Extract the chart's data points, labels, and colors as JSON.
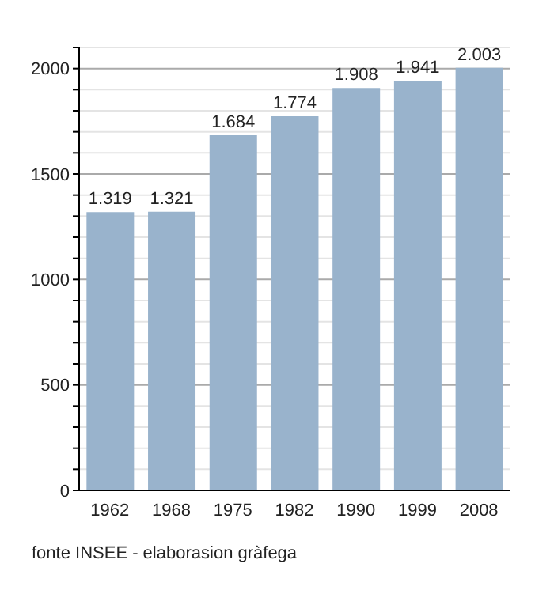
{
  "chart_data": {
    "type": "bar",
    "categories": [
      "1962",
      "1968",
      "1975",
      "1982",
      "1990",
      "1999",
      "2008"
    ],
    "values": [
      1319,
      1321,
      1684,
      1774,
      1908,
      1941,
      2003
    ],
    "value_labels": [
      "1.319",
      "1.321",
      "1.684",
      "1.774",
      "1.908",
      "1.941",
      "2.003"
    ],
    "color": "#99b3cc",
    "ylim": [
      0,
      2100
    ],
    "yticks": [
      0,
      {
        "value": 100,
        "label": null
      },
      {
        "value": 200,
        "label": null
      },
      {
        "value": 300,
        "label": null
      },
      {
        "value": 400,
        "label": null
      },
      500,
      {
        "value": 600,
        "label": null
      },
      {
        "value": 700,
        "label": null
      },
      {
        "value": 800,
        "label": null
      },
      {
        "value": 900,
        "label": null
      },
      1000,
      {
        "value": 1100,
        "label": null
      },
      {
        "value": 1200,
        "label": null
      },
      {
        "value": 1300,
        "label": null
      },
      {
        "value": 1400,
        "label": null
      },
      1500,
      {
        "value": 1600,
        "label": null
      },
      {
        "value": 1700,
        "label": null
      },
      {
        "value": 1800,
        "label": null
      },
      {
        "value": 1900,
        "label": null
      },
      2000,
      {
        "value": 2100,
        "label": null
      }
    ],
    "grid": "y",
    "annotations": [
      "fonte INSEE - elaborasion gràfega"
    ]
  }
}
